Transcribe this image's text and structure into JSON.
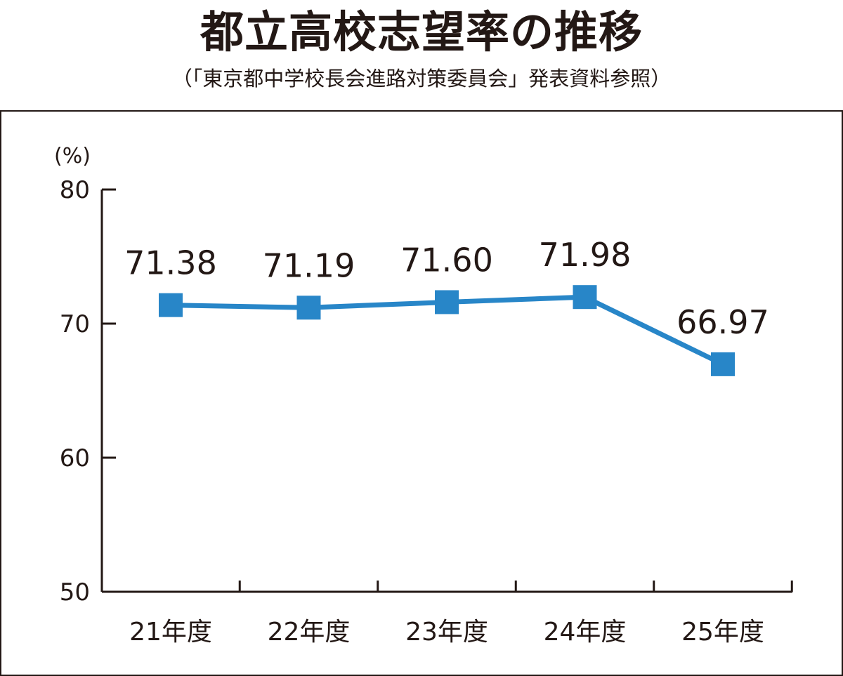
{
  "chart_data": {
    "type": "line",
    "title": "都立高校志望率の推移",
    "subtitle": "（「東京都中学校長会進路対策委員会」発表資料参照）",
    "y_unit": "(%)",
    "ylim": [
      50,
      80
    ],
    "y_ticks": [
      "80",
      "70",
      "60",
      "50"
    ],
    "categories": [
      "21年度",
      "22年度",
      "23年度",
      "24年度",
      "25年度"
    ],
    "series": [
      {
        "values": [
          71.38,
          71.19,
          71.6,
          71.98,
          66.97
        ],
        "labels": [
          "71.38",
          "71.19",
          "71.60",
          "71.98",
          "66.97"
        ],
        "color": "#2886c8"
      }
    ],
    "grid": false
  }
}
